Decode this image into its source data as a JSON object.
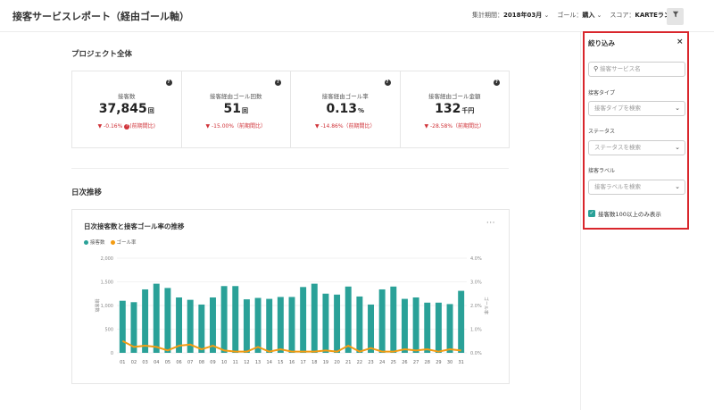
{
  "header": {
    "title": "接客サービスレポート（経由ゴール軸）",
    "period_label": "集計期間：",
    "period_value": "2018年03月",
    "goal_label": "ゴール：",
    "goal_value": "購入",
    "score_label": "スコア：",
    "score_value": "KARTEランク",
    "filter_icon": "filter-icon"
  },
  "project": {
    "title": "プロジェクト全体",
    "kpis": [
      {
        "label": "接客数",
        "value": "37,845",
        "unit": "回",
        "delta": "-0.16%",
        "compare": "(前期間比)"
      },
      {
        "label": "接客経由ゴール回数",
        "value": "51",
        "unit": "回",
        "delta": "-15.00%",
        "compare": "（前期間比）"
      },
      {
        "label": "接客経由ゴール率",
        "value": "0.13",
        "unit": "%",
        "delta": "-14.86%",
        "compare": "（前期間比）"
      },
      {
        "label": "接客経由ゴール金額",
        "value": "132",
        "unit": "千円",
        "delta": "-28.58%",
        "compare": "（前期間比）"
      }
    ]
  },
  "daily": {
    "title": "日次推移",
    "chart_title": "日次接客数と接客ゴール率の推移",
    "more": "···",
    "legend": [
      {
        "name": "接客数",
        "color": "#2aa198"
      },
      {
        "name": "ゴール率",
        "color": "#f39c12"
      }
    ],
    "ylabel_left": "接客数",
    "ylabel_right": "ゴール率"
  },
  "chart_data": {
    "type": "bar",
    "categories": [
      "01",
      "02",
      "03",
      "04",
      "05",
      "06",
      "07",
      "08",
      "09",
      "10",
      "11",
      "12",
      "13",
      "14",
      "15",
      "16",
      "17",
      "18",
      "19",
      "20",
      "21",
      "22",
      "23",
      "24",
      "25",
      "26",
      "27",
      "28",
      "29",
      "30",
      "31"
    ],
    "series": [
      {
        "name": "接客数",
        "type": "bar",
        "axis": "left",
        "color": "#2aa198",
        "values": [
          1100,
          1070,
          1340,
          1460,
          1370,
          1170,
          1120,
          1020,
          1170,
          1410,
          1410,
          1130,
          1160,
          1140,
          1180,
          1180,
          1390,
          1460,
          1250,
          1230,
          1400,
          1190,
          1020,
          1340,
          1400,
          1140,
          1170,
          1060,
          1060,
          1030,
          1310
        ]
      },
      {
        "name": "ゴール率",
        "type": "line",
        "axis": "right",
        "color": "#f39c12",
        "values": [
          0.5,
          0.25,
          0.3,
          0.25,
          0.1,
          0.3,
          0.35,
          0.15,
          0.3,
          0.1,
          0.05,
          0.05,
          0.25,
          0.05,
          0.15,
          0.05,
          0.05,
          0.05,
          0.1,
          0.05,
          0.3,
          0.05,
          0.2,
          0.05,
          0.05,
          0.15,
          0.1,
          0.15,
          0.05,
          0.15,
          0.1
        ]
      }
    ],
    "ylim_left": [
      0,
      2000
    ],
    "yticks_left": [
      "2,000",
      "1,500",
      "1,000",
      "500",
      "0"
    ],
    "ylim_right": [
      0,
      4
    ],
    "yticks_right": [
      "4.0%",
      "3.0%",
      "2.0%",
      "1.0%",
      "0.0%"
    ],
    "grid": true
  },
  "panel": {
    "title": "絞り込み",
    "close": "×",
    "search_placeholder": "接客サービス名",
    "type_label": "接客タイプ",
    "type_placeholder": "接客タイプを検索",
    "status_label": "ステータス",
    "status_placeholder": "ステータスを検索",
    "tag_label": "接客ラベル",
    "tag_placeholder": "接客ラベルを検索",
    "checkbox_label": "接客数100以上のみ表示",
    "checkbox_checked": true
  }
}
